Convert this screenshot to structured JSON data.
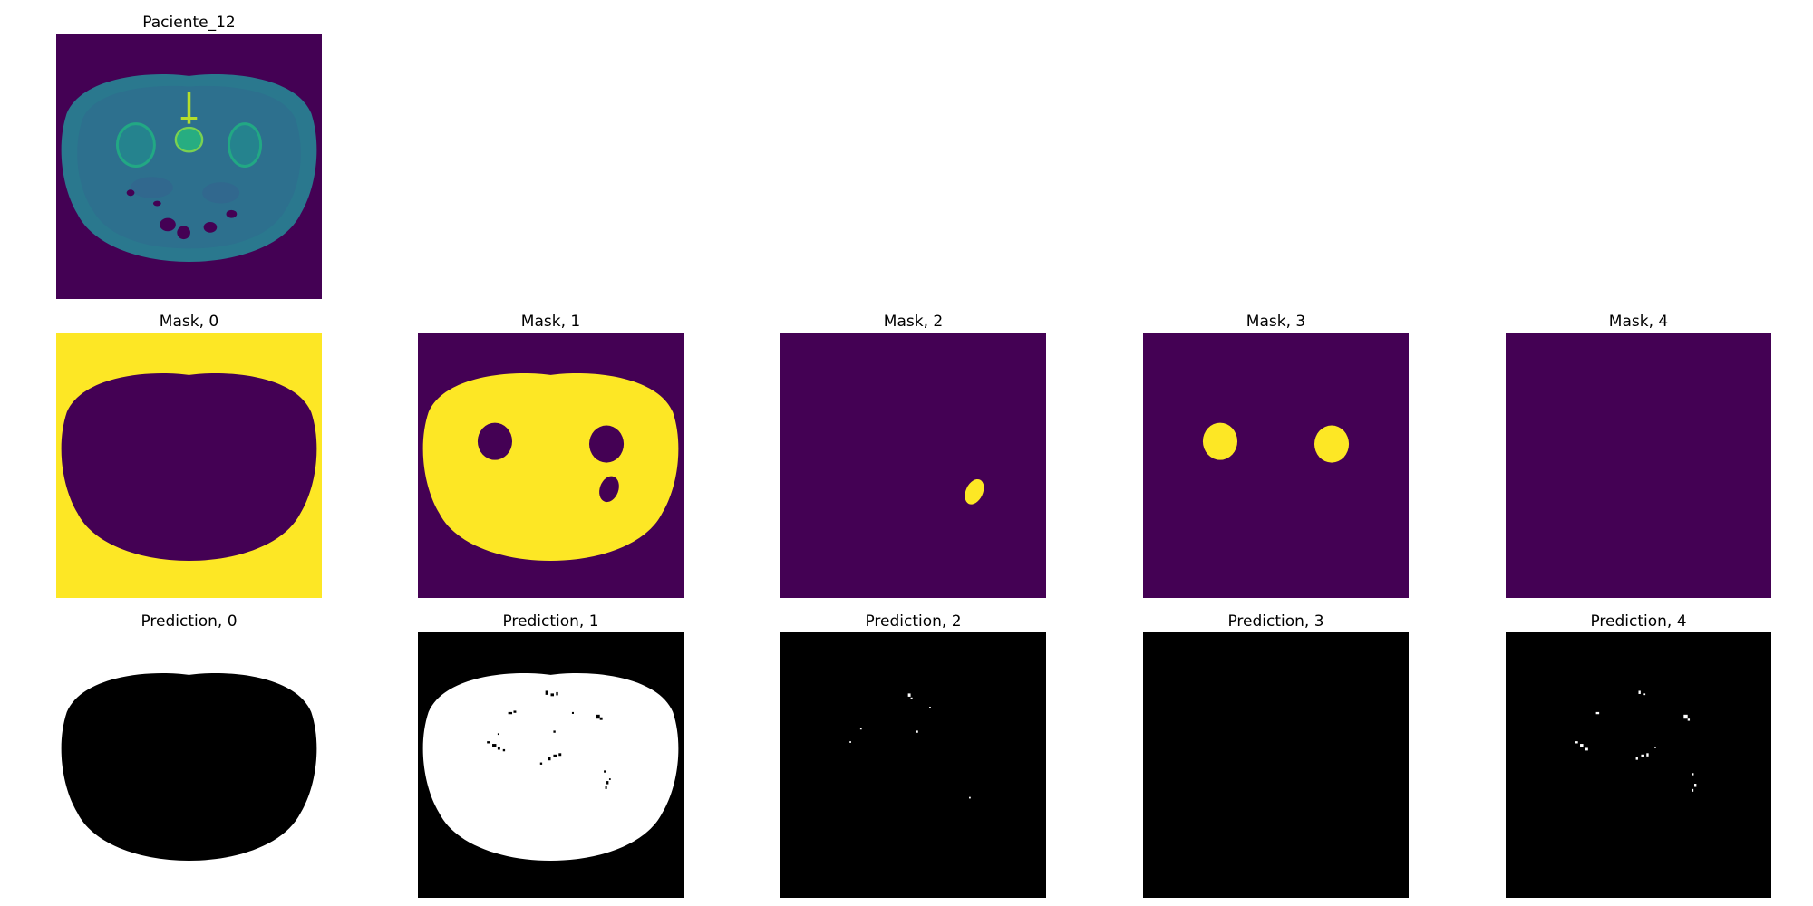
{
  "figure": {
    "ct": {
      "title": "Paciente_12"
    },
    "masks": [
      {
        "title": "Mask, 0"
      },
      {
        "title": "Mask, 1"
      },
      {
        "title": "Mask, 2"
      },
      {
        "title": "Mask, 3"
      },
      {
        "title": "Mask, 4"
      }
    ],
    "predictions": [
      {
        "title": "Prediction, 0"
      },
      {
        "title": "Prediction, 1"
      },
      {
        "title": "Prediction, 2"
      },
      {
        "title": "Prediction, 3"
      },
      {
        "title": "Prediction, 4"
      }
    ],
    "colors": {
      "viridis_low": "#440154",
      "viridis_high": "#fde725",
      "ct_body": "#2a788e",
      "ct_bright": "#7ad151",
      "pred_bg": "#000000",
      "pred_fg": "#ffffff"
    }
  }
}
